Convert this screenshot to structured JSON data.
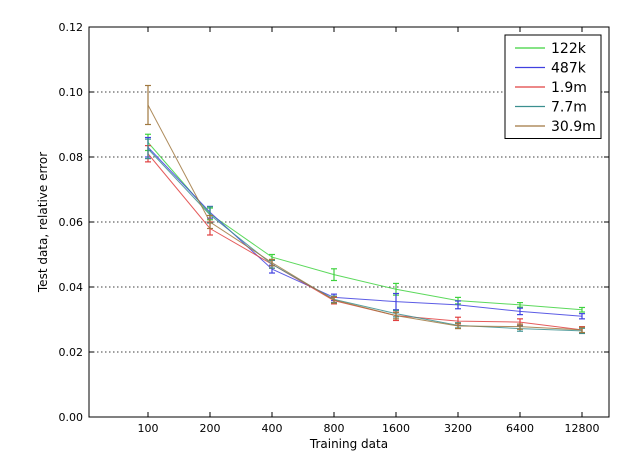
{
  "chart_data": {
    "type": "line",
    "xlabel": "Training data",
    "ylabel": "Test data, relative error",
    "x_categories": [
      "100",
      "200",
      "400",
      "800",
      "1600",
      "3200",
      "6400",
      "12800"
    ],
    "ylim": [
      0.0,
      0.12
    ],
    "yticks": [
      "0.00",
      "0.02",
      "0.04",
      "0.06",
      "0.08",
      "0.10",
      "0.12"
    ],
    "grid": true,
    "legend_position": "top-right",
    "series": [
      {
        "name": "122k",
        "color": "#3fd23f",
        "values": [
          0.0845,
          0.0625,
          0.0492,
          0.0438,
          0.0393,
          0.0358,
          0.0345,
          0.033
        ],
        "errors": [
          0.0025,
          0.0018,
          0.0008,
          0.0018,
          0.0018,
          0.001,
          0.0007,
          0.0007
        ]
      },
      {
        "name": "487k",
        "color": "#4040e0",
        "values": [
          0.083,
          0.063,
          0.0455,
          0.0368,
          0.0355,
          0.0345,
          0.0325,
          0.031
        ],
        "errors": [
          0.003,
          0.0018,
          0.0012,
          0.001,
          0.0025,
          0.0012,
          0.001,
          0.0008
        ]
      },
      {
        "name": "1.9m",
        "color": "#e04040",
        "values": [
          0.081,
          0.058,
          0.047,
          0.0358,
          0.0312,
          0.0295,
          0.0292,
          0.0268
        ],
        "errors": [
          0.0025,
          0.002,
          0.0012,
          0.001,
          0.0015,
          0.0012,
          0.001,
          0.001
        ]
      },
      {
        "name": "7.7m",
        "color": "#3b8f8f",
        "values": [
          0.0825,
          0.0622,
          0.047,
          0.0362,
          0.0318,
          0.0282,
          0.0272,
          0.0265
        ],
        "errors": [
          0.003,
          0.0025,
          0.0012,
          0.001,
          0.001,
          0.0008,
          0.0008,
          0.0008
        ]
      },
      {
        "name": "30.9m",
        "color": "#a07840",
        "values": [
          0.096,
          0.06,
          0.0475,
          0.036,
          0.0312,
          0.028,
          0.0278,
          0.0268
        ],
        "errors": [
          0.006,
          0.002,
          0.001,
          0.001,
          0.001,
          0.0008,
          0.0008,
          0.0008
        ]
      }
    ]
  }
}
